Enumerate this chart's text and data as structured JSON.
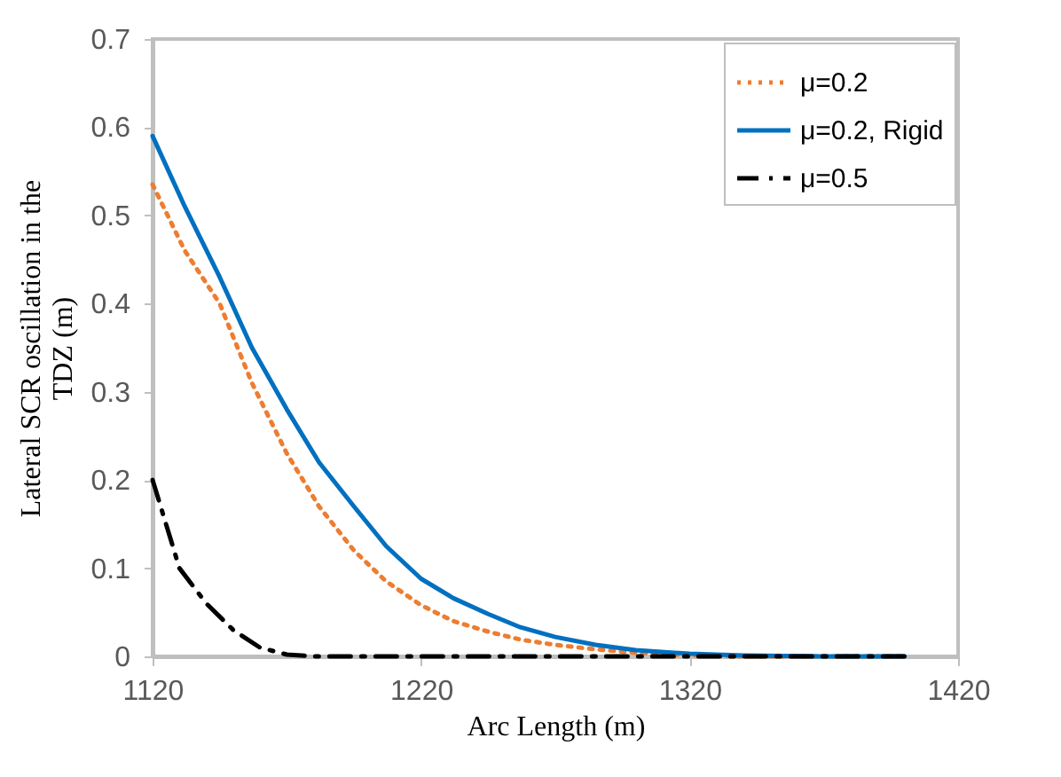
{
  "chart_data": {
    "type": "line",
    "xlabel": "Arc Length (m)",
    "ylabel": "Lateral SCR oscillation in the TDZ (m)",
    "xlim": [
      1120,
      1420
    ],
    "xticks": [
      1120,
      1220,
      1320,
      1420
    ],
    "ylim": [
      0,
      0.7
    ],
    "yticks": [
      0,
      0.1,
      0.2,
      0.3,
      0.4,
      0.5,
      0.6,
      0.7
    ],
    "grid": false,
    "legend": "top right",
    "marker": "none",
    "series": [
      {
        "name": "μ=0.2",
        "color": "#ed7d31",
        "line_style": "dotted",
        "x": [
          1120,
          1132,
          1145,
          1157,
          1170,
          1182,
          1195,
          1207,
          1220,
          1232,
          1245,
          1257,
          1270,
          1285,
          1300,
          1320,
          1340,
          1370,
          1400
        ],
        "values": [
          0.535,
          0.46,
          0.4,
          0.31,
          0.23,
          0.17,
          0.12,
          0.085,
          0.058,
          0.04,
          0.028,
          0.019,
          0.013,
          0.008,
          0.004,
          0.001,
          0,
          0,
          0
        ]
      },
      {
        "name": "μ=0.2, Rigid",
        "color": "#0070c0",
        "line_style": "solid",
        "x": [
          1120,
          1132,
          1145,
          1157,
          1170,
          1182,
          1195,
          1207,
          1220,
          1232,
          1245,
          1257,
          1270,
          1285,
          1300,
          1320,
          1340,
          1370,
          1400
        ],
        "values": [
          0.59,
          0.51,
          0.43,
          0.35,
          0.28,
          0.22,
          0.17,
          0.125,
          0.088,
          0.066,
          0.048,
          0.033,
          0.022,
          0.013,
          0.007,
          0.003,
          0.001,
          0,
          0
        ]
      },
      {
        "name": "μ=0.5",
        "color": "#000000",
        "line_style": "dashdot",
        "x": [
          1120,
          1125,
          1130,
          1140,
          1150,
          1160,
          1170,
          1180,
          1220,
          1260,
          1300,
          1340,
          1400
        ],
        "values": [
          0.2,
          0.15,
          0.1,
          0.06,
          0.03,
          0.01,
          0.002,
          0,
          0,
          0,
          0,
          0,
          0
        ]
      }
    ]
  }
}
